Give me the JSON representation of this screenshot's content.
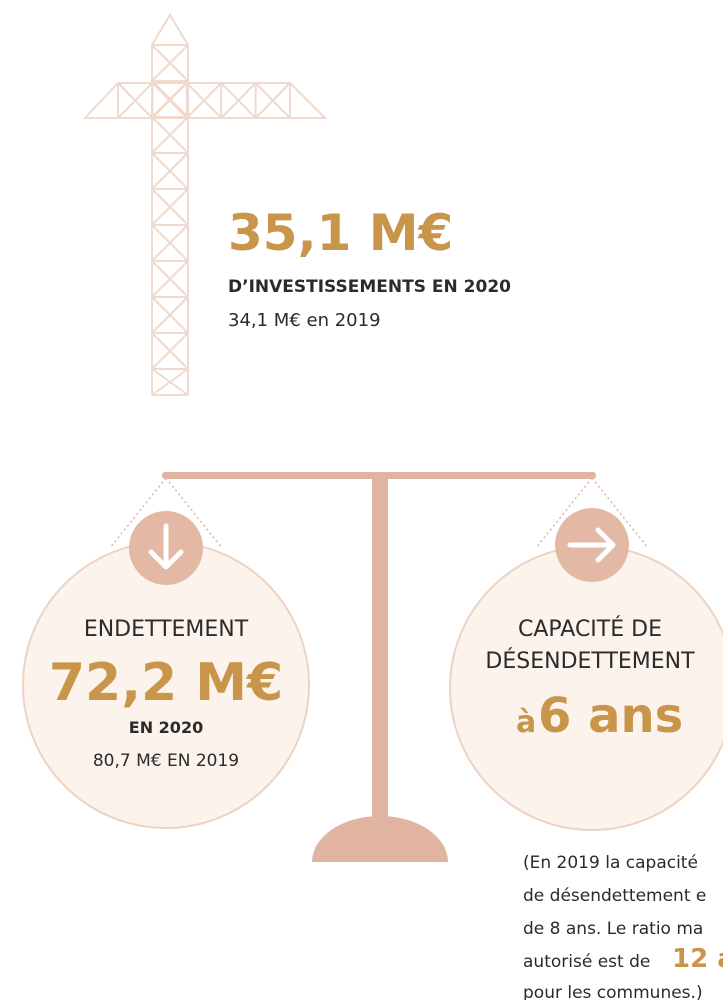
{
  "investment": {
    "value": "35,1 M€",
    "label": "D’INVESTISSEMENTS EN 2020",
    "previous": "34,1 M€ en 2019"
  },
  "debt": {
    "title": "ENDETTEMENT",
    "value": "72,2 M€",
    "year": "EN 2020",
    "previous": "80,7 M€ EN 2019"
  },
  "capacity": {
    "title_lines": [
      "CAPACITÉ DE",
      "DÉSENDETTEMENT"
    ],
    "prefix": "à",
    "value": "6 ans"
  },
  "note": {
    "lines": [
      "(En 2019 la capacité",
      "de désendettement e",
      "de 8 ans. Le ratio ma",
      "autorisé est de",
      "pour les communes.)"
    ],
    "highlight": "12 a"
  }
}
